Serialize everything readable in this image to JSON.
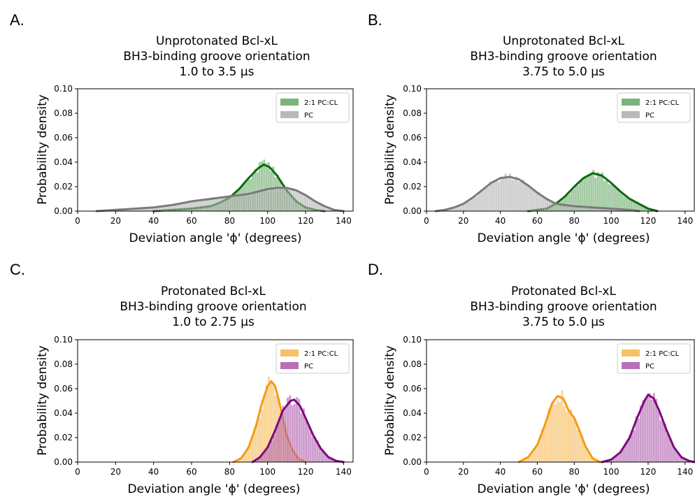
{
  "panels": [
    {
      "letter": "A.",
      "title": [
        "Unprotonated Bcl-xL",
        "BH3-binding groove orientation",
        "1.0 to 3.5 μs"
      ],
      "xlabel": "Deviation angle 'ϕ' (degrees)",
      "ylabel": "Probability density",
      "xlim": [
        0,
        145
      ],
      "ylim": [
        0,
        0.1
      ],
      "xticks": [
        "0",
        "20",
        "40",
        "60",
        "80",
        "100",
        "120",
        "140"
      ],
      "yticks": [
        "0.00",
        "0.02",
        "0.04",
        "0.06",
        "0.08",
        "0.10"
      ],
      "legend": [
        "2:1 PC:CL",
        "PC"
      ]
    },
    {
      "letter": "B.",
      "title": [
        "Unprotonated Bcl-xL",
        "BH3-binding groove orientation",
        "3.75 to 5.0 μs"
      ],
      "xlabel": "Deviation angle 'ϕ' (degrees)",
      "ylabel": "Probability density",
      "xlim": [
        0,
        145
      ],
      "ylim": [
        0,
        0.1
      ],
      "xticks": [
        "0",
        "20",
        "40",
        "60",
        "80",
        "100",
        "120",
        "140"
      ],
      "yticks": [
        "0.00",
        "0.02",
        "0.04",
        "0.06",
        "0.08",
        "0.10"
      ],
      "legend": [
        "2:1 PC:CL",
        "PC"
      ]
    },
    {
      "letter": "C.",
      "title": [
        "Protonated Bcl-xL",
        "BH3-binding groove orientation",
        "1.0 to 2.75 μs"
      ],
      "xlabel": "Deviation angle 'ϕ' (degrees)",
      "ylabel": "Probability density",
      "xlim": [
        0,
        145
      ],
      "ylim": [
        0,
        0.1
      ],
      "xticks": [
        "0",
        "20",
        "40",
        "60",
        "80",
        "100",
        "120",
        "140"
      ],
      "yticks": [
        "0.00",
        "0.02",
        "0.04",
        "0.06",
        "0.08",
        "0.10"
      ],
      "legend": [
        "2:1 PC:CL",
        "PC"
      ]
    },
    {
      "letter": "D.",
      "title": [
        "Protonated Bcl-xL",
        "BH3-binding groove orientation",
        "3.75 to 5.0 μs"
      ],
      "xlabel": "Deviation angle 'ϕ' (degrees)",
      "ylabel": "Probability density",
      "xlim": [
        0,
        145
      ],
      "ylim": [
        0,
        0.1
      ],
      "xticks": [
        "0",
        "20",
        "40",
        "60",
        "80",
        "100",
        "120",
        "140"
      ],
      "yticks": [
        "0.00",
        "0.02",
        "0.04",
        "0.06",
        "0.08",
        "0.10"
      ],
      "legend": [
        "2:1 PC:CL",
        "PC"
      ]
    }
  ],
  "chart_data": [
    {
      "panel": "A.",
      "type": "area",
      "title": "Unprotonated Bcl-xL BH3-binding groove orientation 1.0 to 3.5 μs",
      "xlabel": "Deviation angle 'ϕ' (degrees)",
      "ylabel": "Probability density",
      "xlim": [
        0,
        145
      ],
      "ylim": [
        0,
        0.1
      ],
      "legend_position": "top-right",
      "grid": false,
      "series": [
        {
          "name": "2:1 PC:CL",
          "fill_color": "#5aa05a",
          "line_color": "#0d6b0d",
          "x": [
            40,
            50,
            60,
            70,
            75,
            80,
            85,
            90,
            95,
            98,
            101,
            105,
            110,
            115,
            120,
            125,
            130
          ],
          "y": [
            0.0,
            0.001,
            0.002,
            0.004,
            0.007,
            0.011,
            0.018,
            0.027,
            0.035,
            0.038,
            0.036,
            0.029,
            0.017,
            0.008,
            0.003,
            0.001,
            0.0
          ]
        },
        {
          "name": "PC",
          "fill_color": "#a8a8a8",
          "line_color": "#7a7a7a",
          "x": [
            10,
            20,
            30,
            40,
            50,
            60,
            70,
            80,
            90,
            100,
            105,
            110,
            115,
            120,
            125,
            130,
            135,
            140
          ],
          "y": [
            0.0,
            0.001,
            0.002,
            0.003,
            0.005,
            0.008,
            0.01,
            0.012,
            0.014,
            0.018,
            0.019,
            0.019,
            0.017,
            0.013,
            0.008,
            0.004,
            0.001,
            0.0
          ]
        }
      ]
    },
    {
      "panel": "B.",
      "type": "area",
      "title": "Unprotonated Bcl-xL BH3-binding groove orientation 3.75 to 5.0 μs",
      "xlabel": "Deviation angle 'ϕ' (degrees)",
      "ylabel": "Probability density",
      "xlim": [
        0,
        145
      ],
      "ylim": [
        0,
        0.1
      ],
      "legend_position": "top-right",
      "grid": false,
      "series": [
        {
          "name": "2:1 PC:CL",
          "fill_color": "#5aa05a",
          "line_color": "#0d6b0d",
          "x": [
            55,
            60,
            65,
            70,
            75,
            80,
            85,
            90,
            95,
            100,
            105,
            110,
            115,
            120,
            125
          ],
          "y": [
            0.0,
            0.001,
            0.002,
            0.006,
            0.012,
            0.02,
            0.027,
            0.031,
            0.029,
            0.023,
            0.016,
            0.01,
            0.006,
            0.002,
            0.0
          ]
        },
        {
          "name": "PC",
          "fill_color": "#a8a8a8",
          "line_color": "#7a7a7a",
          "x": [
            5,
            10,
            15,
            20,
            25,
            30,
            35,
            40,
            45,
            50,
            55,
            60,
            65,
            70,
            80,
            90,
            100,
            110,
            115
          ],
          "y": [
            0.0,
            0.001,
            0.003,
            0.006,
            0.011,
            0.017,
            0.023,
            0.027,
            0.028,
            0.026,
            0.021,
            0.015,
            0.01,
            0.006,
            0.004,
            0.003,
            0.002,
            0.001,
            0.0
          ]
        }
      ]
    },
    {
      "panel": "C.",
      "type": "area",
      "title": "Protonated Bcl-xL BH3-binding groove orientation 1.0 to 2.75 μs",
      "xlabel": "Deviation angle 'ϕ' (degrees)",
      "ylabel": "Probability density",
      "xlim": [
        0,
        145
      ],
      "ylim": [
        0,
        0.1
      ],
      "legend_position": "top-right",
      "grid": false,
      "series": [
        {
          "name": "2:1 PC:CL",
          "fill_color": "#f5b041",
          "line_color": "#f39c12",
          "x": [
            82,
            86,
            90,
            94,
            97,
            100,
            102,
            104,
            106,
            108,
            110,
            113,
            116,
            120
          ],
          "y": [
            0.0,
            0.003,
            0.012,
            0.03,
            0.048,
            0.062,
            0.066,
            0.062,
            0.05,
            0.036,
            0.022,
            0.01,
            0.003,
            0.0
          ]
        },
        {
          "name": "PC",
          "fill_color": "#a64ca6",
          "line_color": "#7d0a7d",
          "x": [
            92,
            96,
            100,
            104,
            108,
            112,
            114,
            117,
            120,
            124,
            128,
            132,
            136,
            140
          ],
          "y": [
            0.0,
            0.004,
            0.012,
            0.026,
            0.042,
            0.05,
            0.051,
            0.046,
            0.036,
            0.022,
            0.011,
            0.004,
            0.001,
            0.0
          ]
        }
      ]
    },
    {
      "panel": "D.",
      "type": "area",
      "title": "Protonated Bcl-xL BH3-binding groove orientation 3.75 to 5.0 μs",
      "xlabel": "Deviation angle 'ϕ' (degrees)",
      "ylabel": "Probability density",
      "xlim": [
        0,
        145
      ],
      "ylim": [
        0,
        0.1
      ],
      "legend_position": "top-right",
      "grid": false,
      "series": [
        {
          "name": "2:1 PC:CL",
          "fill_color": "#f5b041",
          "line_color": "#f39c12",
          "x": [
            50,
            55,
            60,
            64,
            68,
            71,
            74,
            77,
            80,
            83,
            86,
            90,
            94
          ],
          "y": [
            0.0,
            0.004,
            0.014,
            0.03,
            0.048,
            0.054,
            0.052,
            0.042,
            0.036,
            0.025,
            0.013,
            0.003,
            0.0
          ]
        },
        {
          "name": "PC",
          "fill_color": "#a64ca6",
          "line_color": "#7d0a7d",
          "x": [
            95,
            100,
            105,
            110,
            114,
            118,
            120,
            123,
            126,
            130,
            134,
            138,
            142,
            145
          ],
          "y": [
            0.0,
            0.002,
            0.008,
            0.02,
            0.036,
            0.05,
            0.055,
            0.052,
            0.042,
            0.026,
            0.012,
            0.004,
            0.001,
            0.0
          ]
        }
      ]
    }
  ]
}
